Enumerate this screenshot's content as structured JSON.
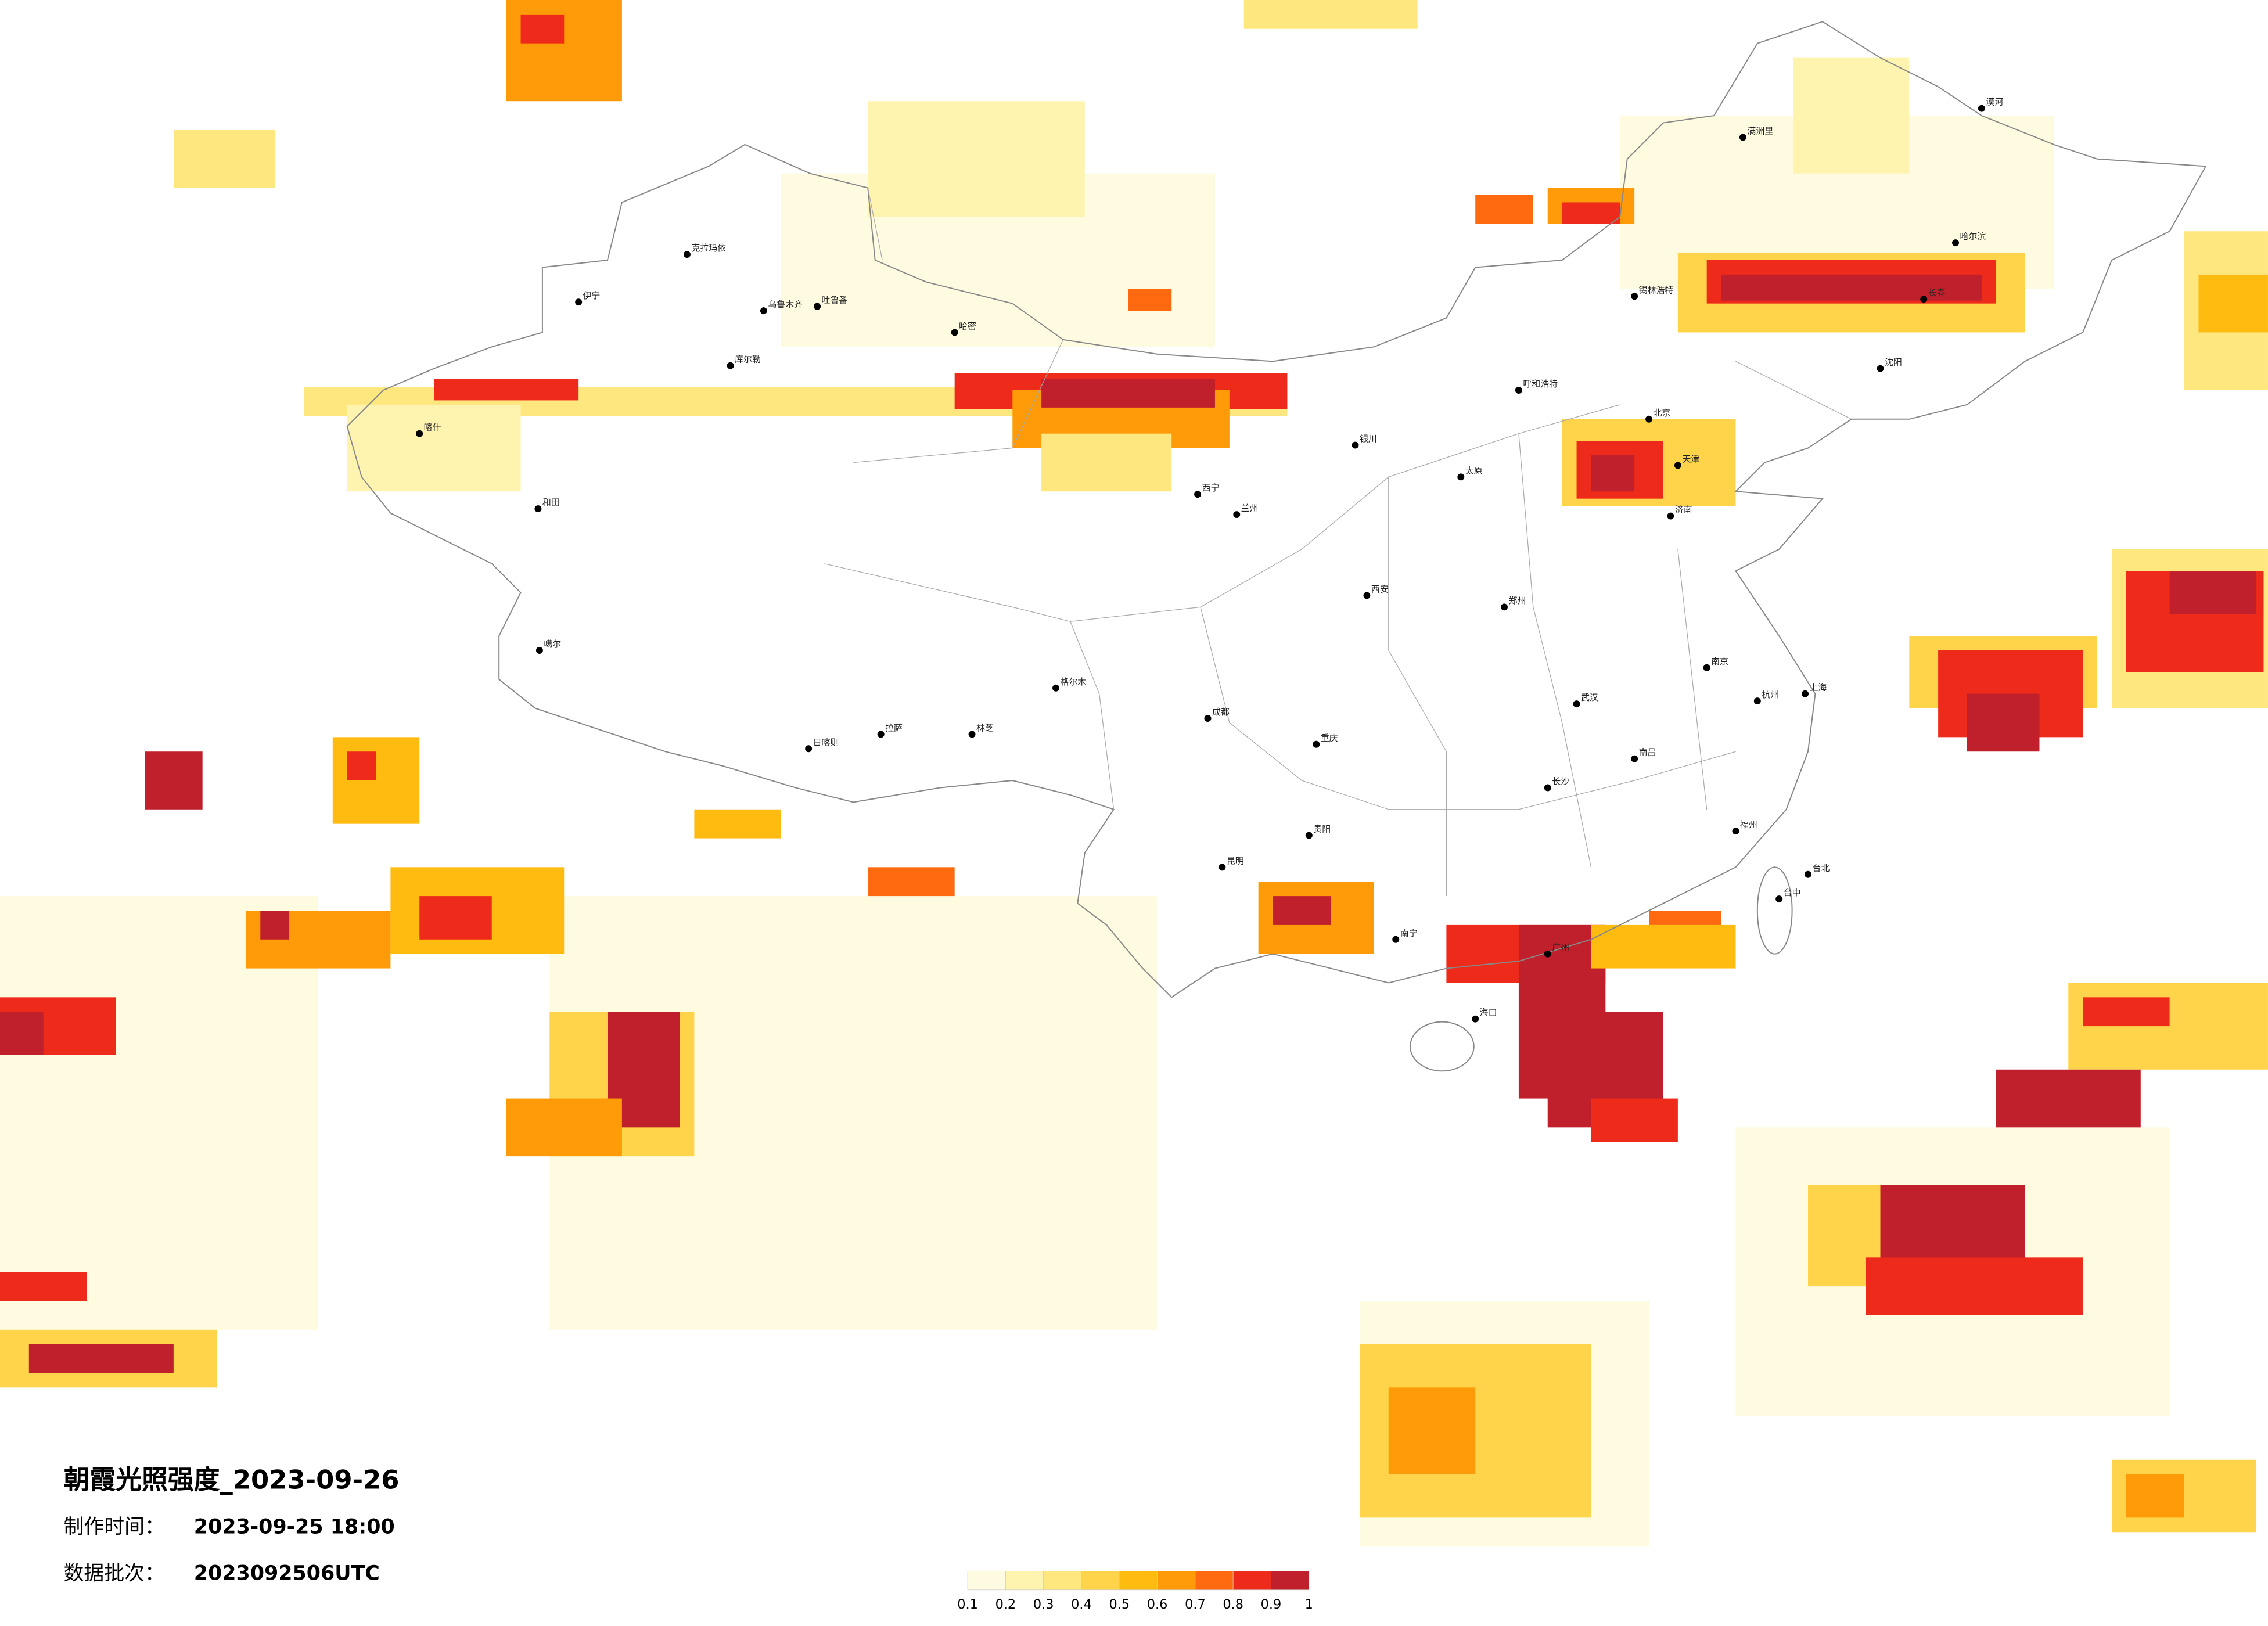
{
  "title": "朝霞光照强度_2023-09-26",
  "info": [
    {
      "label": "制作时间：",
      "value": "2023-09-25 18:00"
    },
    {
      "label": "数据批次：",
      "value": "2023092506UTC"
    }
  ],
  "colorbar": {
    "ticks": [
      0.1,
      0.2,
      0.3,
      0.4,
      0.5,
      0.6,
      0.7,
      0.8,
      0.9,
      1
    ],
    "colors": [
      "#fffbe0",
      "#fff3b0",
      "#ffe780",
      "#ffd44a",
      "#ffbb10",
      "#ff9a08",
      "#ff6a10",
      "#ee2a1a",
      "#c0202c"
    ]
  },
  "cities": [
    "克拉玛依",
    "伊宁",
    "乌鲁木齐",
    "吐鲁番",
    "库尔勒",
    "哈密",
    "喀什",
    "和田",
    "噶尔",
    "日喀则",
    "拉萨",
    "林芝",
    "格尔木",
    "西宁",
    "兰州",
    "银川",
    "呼和浩特",
    "北京",
    "天津",
    "济南",
    "郑州",
    "西安",
    "成都",
    "重庆",
    "昆明",
    "南宁",
    "广州",
    "海口",
    "长沙",
    "武汉",
    "南昌",
    "福州",
    "杭州",
    "南京",
    "上海",
    "台北",
    "台中",
    "沈阳",
    "长春",
    "哈尔滨",
    "漠河",
    "满洲里",
    "锡林浩特",
    "贵阳",
    "太原"
  ]
}
